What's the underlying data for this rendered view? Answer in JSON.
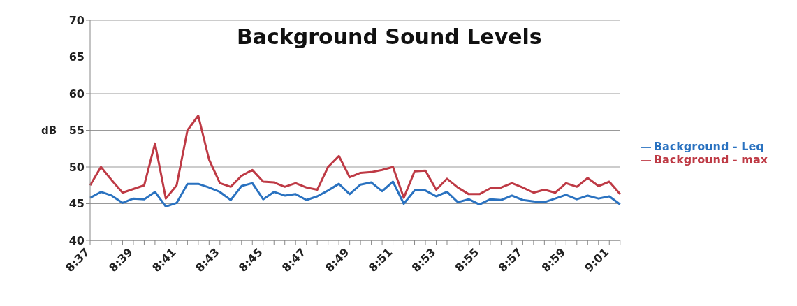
{
  "chart_data": {
    "type": "line",
    "title": "Background Sound Levels",
    "ylabel": "dB",
    "categories": [
      "8:37",
      null,
      null,
      null,
      "8:39",
      null,
      null,
      null,
      "8:41",
      null,
      null,
      null,
      "8:43",
      null,
      null,
      null,
      "8:45",
      null,
      null,
      null,
      "8:47",
      null,
      null,
      null,
      "8:49",
      null,
      null,
      null,
      "8:51",
      null,
      null,
      null,
      "8:53",
      null,
      null,
      null,
      "8:55",
      null,
      null,
      null,
      "8:57",
      null,
      null,
      null,
      "8:59",
      null,
      null,
      null,
      "9:01",
      null
    ],
    "series": [
      {
        "name": "Background - Leq",
        "color": "#2a72c0",
        "values": [
          45.8,
          46.6,
          46.1,
          45.1,
          45.7,
          45.6,
          46.6,
          44.6,
          45.1,
          47.7,
          47.7,
          47.2,
          46.6,
          45.5,
          47.4,
          47.8,
          45.6,
          46.6,
          46.1,
          46.3,
          45.5,
          46,
          46.8,
          47.7,
          46.3,
          47.6,
          47.9,
          46.7,
          48,
          45,
          46.8,
          46.8,
          46,
          46.6,
          45.2,
          45.6,
          44.9,
          45.6,
          45.5,
          46.1,
          45.5,
          45.3,
          45.2,
          45.7,
          46.2,
          45.6,
          46.1,
          45.7,
          46,
          44.9
        ]
      },
      {
        "name": "Background - max",
        "color": "#be3a45",
        "values": [
          47.5,
          50,
          48.2,
          46.5,
          47,
          47.5,
          53.2,
          45.7,
          47.5,
          55,
          57,
          51,
          47.8,
          47.3,
          48.8,
          49.6,
          48,
          47.9,
          47.3,
          47.8,
          47.2,
          46.9,
          50,
          51.5,
          48.6,
          49.2,
          49.3,
          49.6,
          50,
          45.8,
          49.4,
          49.5,
          46.9,
          48.4,
          47.2,
          46.3,
          46.3,
          47.1,
          47.2,
          47.8,
          47.2,
          46.5,
          46.9,
          46.5,
          47.8,
          47.3,
          48.5,
          47.4,
          48,
          46.3
        ]
      }
    ],
    "ylim": [
      40,
      70
    ],
    "yticks": [
      40,
      45,
      50,
      55,
      60,
      65,
      70
    ],
    "grid": "y",
    "legend": "right",
    "marker": "none",
    "line_style": "solid"
  }
}
